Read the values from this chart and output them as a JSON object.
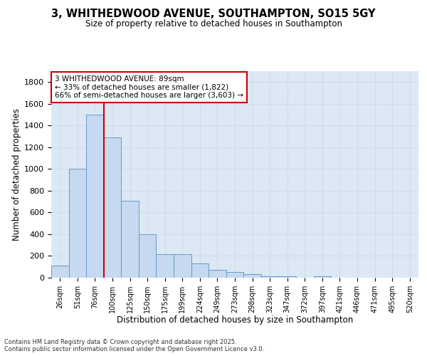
{
  "title": "3, WHITHEDWOOD AVENUE, SOUTHAMPTON, SO15 5GY",
  "subtitle": "Size of property relative to detached houses in Southampton",
  "xlabel": "Distribution of detached houses by size in Southampton",
  "ylabel": "Number of detached properties",
  "bar_labels": [
    "26sqm",
    "51sqm",
    "76sqm",
    "100sqm",
    "125sqm",
    "150sqm",
    "175sqm",
    "199sqm",
    "224sqm",
    "249sqm",
    "273sqm",
    "298sqm",
    "323sqm",
    "347sqm",
    "372sqm",
    "397sqm",
    "421sqm",
    "446sqm",
    "471sqm",
    "495sqm",
    "520sqm"
  ],
  "bar_values": [
    110,
    1000,
    1500,
    1290,
    710,
    400,
    215,
    215,
    130,
    70,
    50,
    35,
    15,
    15,
    0,
    15,
    0,
    0,
    0,
    0,
    0
  ],
  "bar_color": "#c6d9f0",
  "bar_edge_color": "#6699cc",
  "annotation_text": "3 WHITHEDWOOD AVENUE: 89sqm\n← 33% of detached houses are smaller (1,822)\n66% of semi-detached houses are larger (3,603) →",
  "annotation_box_color": "#ffffff",
  "annotation_box_edge": "#cc0000",
  "vline_color": "#cc0000",
  "vline_x_index": 2.5,
  "ylim": [
    0,
    1900
  ],
  "yticks": [
    0,
    200,
    400,
    600,
    800,
    1000,
    1200,
    1400,
    1600,
    1800
  ],
  "grid_color": "#d0dce8",
  "bg_color": "#dce9f5",
  "fig_bg_color": "#ffffff",
  "footer_line1": "Contains HM Land Registry data © Crown copyright and database right 2025.",
  "footer_line2": "Contains public sector information licensed under the Open Government Licence v3.0."
}
